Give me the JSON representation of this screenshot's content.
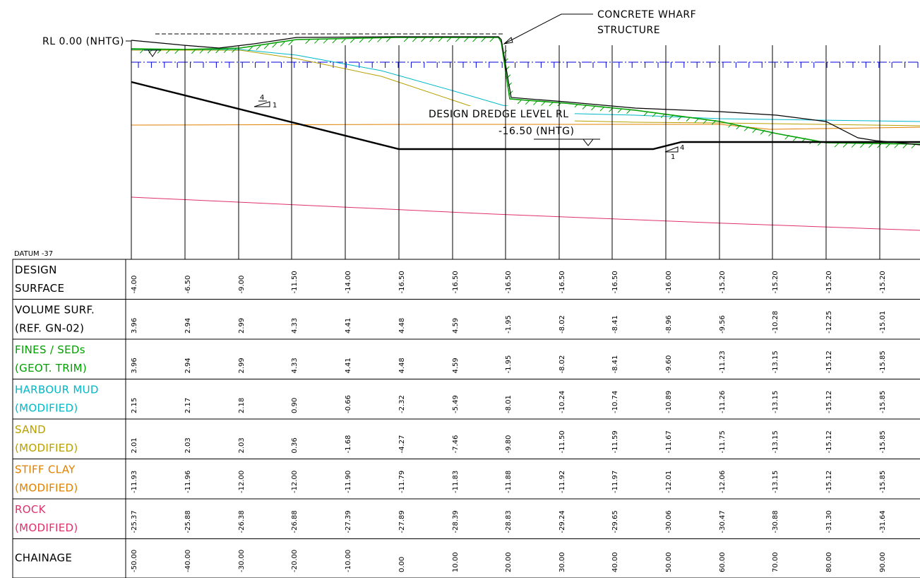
{
  "annotations": {
    "rl_label": "RL 0.00 (NHTG)",
    "wharf_line1": "CONCRETE WHARF",
    "wharf_line2": "STRUCTURE",
    "dredge_line1": "DESIGN DREDGE LEVEL RL",
    "dredge_line2": "-16.50 (NHTG)",
    "slope_left_rise": "4",
    "slope_left_run": "1",
    "slope_right_rise": "4",
    "slope_right_run": "1",
    "datum": "DATUM -37"
  },
  "colors": {
    "volume": "#000000",
    "fines": "#00a000",
    "mud": "#00b8c8",
    "sand": "#b8a000",
    "clay": "#e08000",
    "rock": "#e0306a",
    "water": "#0000dd"
  },
  "chart_data": {
    "type": "table",
    "chainage": [
      "-50.00",
      "-40.00",
      "-30.00",
      "-20.00",
      "-10.00",
      "0.00",
      "10.00",
      "20.00",
      "30.00",
      "40.00",
      "50.00",
      "60.00",
      "70.00",
      "80.00",
      "90.00"
    ],
    "rows": [
      {
        "key": "design",
        "label1": "DESIGN",
        "label2": "SURFACE",
        "color": "#000000",
        "values": [
          "-4.00",
          "-6.50",
          "-9.00",
          "-11.50",
          "-14.00",
          "-16.50",
          "-16.50",
          "-16.50",
          "-16.50",
          "-16.50",
          "-16.00",
          "-15.20",
          "-15.20",
          "-15.20",
          "-15.20"
        ]
      },
      {
        "key": "volume",
        "label1": "VOLUME SURF.",
        "label2": "(REF. GN-02)",
        "color": "#000000",
        "values": [
          "3.96",
          "2.94",
          "2.99",
          "4.33",
          "4.41",
          "4.48",
          "4.59",
          "-1.95",
          "-8.02",
          "-8.41",
          "-8.96",
          "-9.56",
          "-10.28",
          "-12.25",
          "-15.01"
        ]
      },
      {
        "key": "fines",
        "label1": "FINES / SEDs",
        "label2": "(GEOT. TRIM)",
        "color": "#00a000",
        "values": [
          "3.96",
          "2.94",
          "2.99",
          "4.33",
          "4.41",
          "4.48",
          "4.59",
          "-1.95",
          "-8.02",
          "-8.41",
          "-9.60",
          "-11.23",
          "-13.15",
          "-15.12",
          "-15.85"
        ]
      },
      {
        "key": "mud",
        "label1": "HARBOUR MUD",
        "label2": "(MODIFIED)",
        "color": "#00b8c8",
        "values": [
          "2.15",
          "2.17",
          "2.18",
          "0.90",
          "-0.66",
          "-2.32",
          "-5.49",
          "-8.01",
          "-10.24",
          "-10.74",
          "-10.89",
          "-11.26",
          "-13.15",
          "-15.12",
          "-15.85"
        ]
      },
      {
        "key": "sand",
        "label1": "SAND",
        "label2": "(MODIFIED)",
        "color": "#b8a000",
        "values": [
          "2.01",
          "2.03",
          "2.03",
          "0.36",
          "-1.68",
          "-4.27",
          "-7.46",
          "-9.80",
          "-11.50",
          "-11.59",
          "-11.67",
          "-11.75",
          "-13.15",
          "-15.12",
          "-15.85"
        ]
      },
      {
        "key": "clay",
        "label1": "STIFF CLAY",
        "label2": "(MODIFIED)",
        "color": "#e08000",
        "values": [
          "-11.93",
          "-11.96",
          "-12.00",
          "-12.00",
          "-11.90",
          "-11.79",
          "-11.83",
          "-11.88",
          "-11.92",
          "-11.97",
          "-12.01",
          "-12.06",
          "-13.15",
          "-15.12",
          "-15.85"
        ]
      },
      {
        "key": "rock",
        "label1": "ROCK",
        "label2": "(MODIFIED)",
        "color": "#e0306a",
        "values": [
          "-25.37",
          "-25.88",
          "-26.38",
          "-26.88",
          "-27.39",
          "-27.89",
          "-28.39",
          "-28.83",
          "-29.24",
          "-29.65",
          "-30.06",
          "-30.47",
          "-30.88",
          "-31.30",
          "-31.64"
        ]
      },
      {
        "key": "chainage",
        "label1": "CHAINAGE",
        "label2": "",
        "color": "#000000",
        "values": [
          "-50.00",
          "-40.00",
          "-30.00",
          "-20.00",
          "-10.00",
          "0.00",
          "10.00",
          "20.00",
          "30.00",
          "40.00",
          "50.00",
          "60.00",
          "70.00",
          "80.00",
          "90.00"
        ]
      }
    ]
  }
}
